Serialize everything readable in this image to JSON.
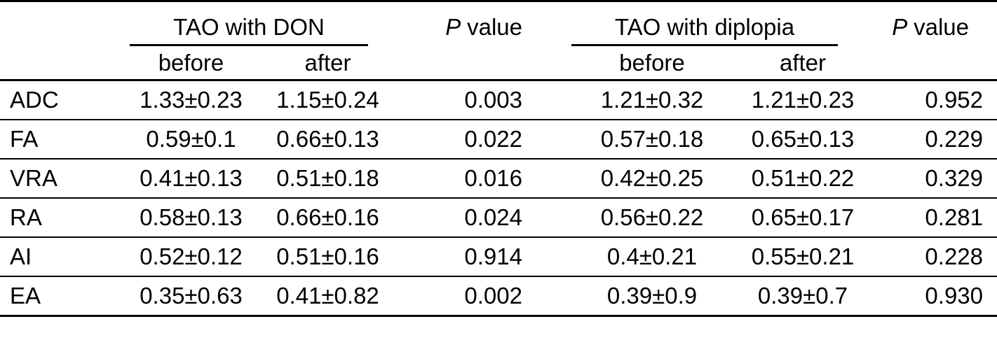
{
  "table": {
    "groups": [
      {
        "label": "TAO with DON"
      },
      {
        "label": "TAO with diplopia"
      }
    ],
    "p_header": {
      "italic": "P",
      "rest": "value"
    },
    "sub_headers": [
      "before",
      "after"
    ],
    "rows": [
      {
        "label": "ADC",
        "don_before": "1.33±0.23",
        "don_after": "1.15±0.24",
        "p_don": "0.003",
        "dip_before": "1.21±0.32",
        "dip_after": "1.21±0.23",
        "p_dip": "0.952"
      },
      {
        "label": "FA",
        "don_before": "0.59±0.1",
        "don_after": "0.66±0.13",
        "p_don": "0.022",
        "dip_before": "0.57±0.18",
        "dip_after": "0.65±0.13",
        "p_dip": "0.229"
      },
      {
        "label": "VRA",
        "don_before": "0.41±0.13",
        "don_after": "0.51±0.18",
        "p_don": "0.016",
        "dip_before": "0.42±0.25",
        "dip_after": "0.51±0.22",
        "p_dip": "0.329"
      },
      {
        "label": "RA",
        "don_before": "0.58±0.13",
        "don_after": "0.66±0.16",
        "p_don": "0.024",
        "dip_before": "0.56±0.22",
        "dip_after": "0.65±0.17",
        "p_dip": "0.281"
      },
      {
        "label": "AI",
        "don_before": "0.52±0.12",
        "don_after": "0.51±0.16",
        "p_don": "0.914",
        "dip_before": "0.4±0.21",
        "dip_after": "0.55±0.21",
        "p_dip": "0.228"
      },
      {
        "label": "EA",
        "don_before": "0.35±0.63",
        "don_after": "0.41±0.82",
        "p_don": "0.002",
        "dip_before": "0.39±0.9",
        "dip_after": "0.39±0.7",
        "p_dip": "0.930"
      }
    ],
    "colors": {
      "text": "#000000",
      "rule": "#000000",
      "background": "#ffffff"
    }
  }
}
